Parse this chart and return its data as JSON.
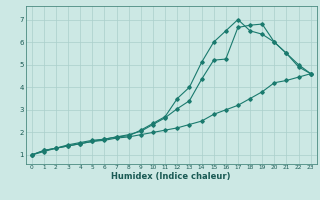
{
  "xlabel": "Humidex (Indice chaleur)",
  "bg_color": "#cce8e4",
  "grid_color": "#aacfcb",
  "line_color": "#1a7a6e",
  "xlim": [
    -0.5,
    23.5
  ],
  "ylim": [
    0.6,
    7.6
  ],
  "xticks": [
    0,
    1,
    2,
    3,
    4,
    5,
    6,
    7,
    8,
    9,
    10,
    11,
    12,
    13,
    14,
    15,
    16,
    17,
    18,
    19,
    20,
    21,
    22,
    23
  ],
  "yticks": [
    1,
    2,
    3,
    4,
    5,
    6,
    7
  ],
  "line1_x": [
    0,
    1,
    2,
    3,
    4,
    5,
    6,
    7,
    8,
    9,
    10,
    11,
    12,
    13,
    14,
    15,
    16,
    17,
    18,
    19,
    20,
    21,
    22,
    23
  ],
  "line1_y": [
    1.0,
    1.2,
    1.3,
    1.4,
    1.5,
    1.6,
    1.65,
    1.75,
    1.8,
    1.9,
    2.0,
    2.1,
    2.2,
    2.35,
    2.5,
    2.8,
    3.0,
    3.2,
    3.5,
    3.8,
    4.2,
    4.3,
    4.45,
    4.6
  ],
  "line2_x": [
    0,
    1,
    2,
    3,
    4,
    5,
    6,
    7,
    8,
    9,
    10,
    11,
    12,
    13,
    14,
    15,
    16,
    17,
    18,
    19,
    20,
    21,
    22,
    23
  ],
  "line2_y": [
    1.0,
    1.15,
    1.3,
    1.45,
    1.55,
    1.65,
    1.7,
    1.8,
    1.9,
    2.05,
    2.35,
    2.65,
    3.05,
    3.4,
    4.35,
    5.2,
    5.25,
    6.65,
    6.75,
    6.8,
    6.0,
    5.5,
    5.0,
    4.6
  ],
  "line3_x": [
    0,
    1,
    2,
    3,
    4,
    5,
    6,
    7,
    8,
    9,
    10,
    11,
    12,
    13,
    14,
    15,
    16,
    17,
    18,
    19,
    20,
    21,
    22,
    23
  ],
  "line3_y": [
    1.0,
    1.2,
    1.3,
    1.4,
    1.5,
    1.6,
    1.7,
    1.8,
    1.85,
    2.1,
    2.4,
    2.7,
    3.5,
    4.0,
    5.1,
    6.0,
    6.5,
    7.0,
    6.5,
    6.35,
    6.0,
    5.5,
    4.9,
    4.6
  ]
}
